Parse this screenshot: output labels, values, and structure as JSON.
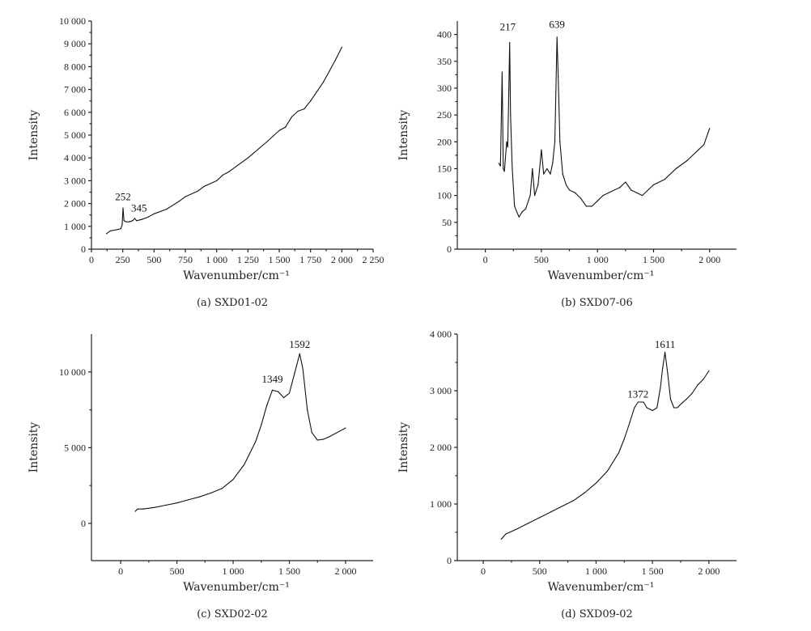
{
  "chart_data": [
    {
      "type": "line",
      "caption": "(a)  SXD01-02",
      "xlabel": "Wavenumber/cm⁻¹",
      "ylabel": "Intensity",
      "xlim": [
        0,
        2250
      ],
      "ylim": [
        0,
        10000
      ],
      "xticks": [
        0,
        250,
        500,
        750,
        1000,
        1250,
        1500,
        1750,
        2000,
        2250
      ],
      "xtick_labels": [
        "0",
        "250",
        "500",
        "750",
        "1 000",
        "1 250",
        "1 500",
        "1 750",
        "2 000",
        "2 250"
      ],
      "yticks": [
        0,
        1000,
        2000,
        3000,
        4000,
        5000,
        6000,
        7000,
        8000,
        9000,
        10000
      ],
      "ytick_labels": [
        "0",
        "1 000",
        "2 000",
        "3 000",
        "4 000",
        "5 000",
        "6 000",
        "7 000",
        "8 000",
        "9 000",
        "10 000"
      ],
      "annotations": [
        {
          "text": "252",
          "x": 252,
          "y": 2150
        },
        {
          "text": "345",
          "x": 380,
          "y": 1650
        }
      ],
      "x": [
        120,
        150,
        200,
        235,
        245,
        252,
        260,
        275,
        300,
        330,
        345,
        360,
        400,
        450,
        500,
        600,
        700,
        750,
        850,
        900,
        1000,
        1050,
        1100,
        1250,
        1400,
        1500,
        1550,
        1600,
        1650,
        1700,
        1750,
        1800,
        1850,
        1900,
        1950,
        2000
      ],
      "y": [
        680,
        800,
        850,
        900,
        1050,
        1800,
        1250,
        1200,
        1200,
        1250,
        1350,
        1250,
        1300,
        1400,
        1550,
        1750,
        2100,
        2300,
        2550,
        2750,
        3000,
        3250,
        3400,
        4000,
        4700,
        5200,
        5350,
        5800,
        6050,
        6150,
        6500,
        6900,
        7300,
        7800,
        8300,
        8850
      ]
    },
    {
      "type": "line",
      "caption": "(b)  SXD07-06",
      "xlabel": "Wavenumber/cm⁻¹",
      "ylabel": "Intensity",
      "xlim": [
        -250,
        2240
      ],
      "ylim": [
        0,
        425
      ],
      "xticks": [
        0,
        500,
        1000,
        1500,
        2000
      ],
      "xtick_labels": [
        "0",
        "500",
        "1 000",
        "1 500",
        "2 000"
      ],
      "yticks": [
        0,
        50,
        100,
        150,
        200,
        250,
        300,
        350,
        400
      ],
      "ytick_labels": [
        "0",
        "50",
        "100",
        "150",
        "200",
        "250",
        "300",
        "350",
        "400"
      ],
      "annotations": [
        {
          "text": "217",
          "x": 200,
          "y": 408
        },
        {
          "text": "639",
          "x": 639,
          "y": 412
        }
      ],
      "x": [
        120,
        135,
        150,
        160,
        170,
        190,
        200,
        210,
        217,
        225,
        240,
        260,
        280,
        300,
        330,
        360,
        400,
        420,
        440,
        470,
        500,
        520,
        550,
        580,
        600,
        620,
        630,
        639,
        650,
        665,
        690,
        720,
        750,
        800,
        850,
        900,
        950,
        1000,
        1050,
        1100,
        1200,
        1250,
        1300,
        1400,
        1500,
        1600,
        1700,
        1800,
        1900,
        1950,
        2000
      ],
      "y": [
        160,
        155,
        330,
        150,
        145,
        200,
        190,
        300,
        385,
        250,
        150,
        80,
        70,
        60,
        70,
        75,
        100,
        150,
        100,
        120,
        185,
        140,
        150,
        140,
        160,
        200,
        300,
        395,
        320,
        200,
        140,
        120,
        110,
        105,
        95,
        80,
        80,
        90,
        100,
        105,
        115,
        125,
        110,
        100,
        120,
        130,
        150,
        165,
        185,
        195,
        225
      ]
    },
    {
      "type": "line",
      "caption": "(c)  SXD02-02",
      "xlabel": "Wavenumber/cm⁻¹",
      "ylabel": "Intensity",
      "xlim": [
        -260,
        2245
      ],
      "ylim": [
        -2460,
        12500
      ],
      "xticks": [
        0,
        500,
        1000,
        1500,
        2000
      ],
      "xtick_labels": [
        "0",
        "500",
        "1 000",
        "1 500",
        "2 000"
      ],
      "yticks": [
        0,
        5000,
        10000
      ],
      "ytick_labels": [
        "0",
        "5 000",
        "10 000"
      ],
      "annotations": [
        {
          "text": "1349",
          "x": 1349,
          "y": 9300
        },
        {
          "text": "1592",
          "x": 1592,
          "y": 11600
        }
      ],
      "x": [
        130,
        150,
        200,
        300,
        400,
        500,
        600,
        700,
        800,
        900,
        1000,
        1100,
        1200,
        1250,
        1300,
        1349,
        1400,
        1450,
        1500,
        1550,
        1592,
        1620,
        1660,
        1700,
        1750,
        1800,
        1850,
        1900,
        1950,
        2000
      ],
      "y": [
        800,
        950,
        950,
        1050,
        1200,
        1350,
        1550,
        1750,
        2000,
        2300,
        2900,
        3900,
        5400,
        6500,
        7800,
        8800,
        8700,
        8300,
        8600,
        10000,
        11200,
        10200,
        7500,
        6000,
        5500,
        5550,
        5700,
        5900,
        6100,
        6300
      ]
    },
    {
      "type": "line",
      "caption": "(d)  SXD09-02",
      "xlabel": "Wavenumber/cm⁻¹",
      "ylabel": "Intensity",
      "xlim": [
        -230,
        2245
      ],
      "ylim": [
        0,
        4000
      ],
      "xticks": [
        0,
        500,
        1000,
        1500,
        2000
      ],
      "xtick_labels": [
        "0",
        "500",
        "1 000",
        "1 500",
        "2 000"
      ],
      "yticks": [
        0,
        1000,
        2000,
        3000,
        4000
      ],
      "ytick_labels": [
        "0",
        "1 000",
        "2 000",
        "3 000",
        "4 000"
      ],
      "annotations": [
        {
          "text": "1372",
          "x": 1372,
          "y": 2880
        },
        {
          "text": "1611",
          "x": 1611,
          "y": 3760
        }
      ],
      "x": [
        160,
        200,
        300,
        400,
        500,
        600,
        700,
        800,
        900,
        1000,
        1100,
        1200,
        1250,
        1300,
        1340,
        1372,
        1420,
        1450,
        1500,
        1540,
        1570,
        1590,
        1611,
        1635,
        1660,
        1690,
        1720,
        1760,
        1800,
        1850,
        1900,
        1950,
        2000
      ],
      "y": [
        380,
        470,
        560,
        660,
        760,
        860,
        960,
        1060,
        1200,
        1370,
        1580,
        1900,
        2150,
        2450,
        2700,
        2800,
        2800,
        2700,
        2650,
        2700,
        3050,
        3400,
        3680,
        3300,
        2850,
        2700,
        2700,
        2780,
        2850,
        2950,
        3100,
        3200,
        3350
      ]
    }
  ]
}
